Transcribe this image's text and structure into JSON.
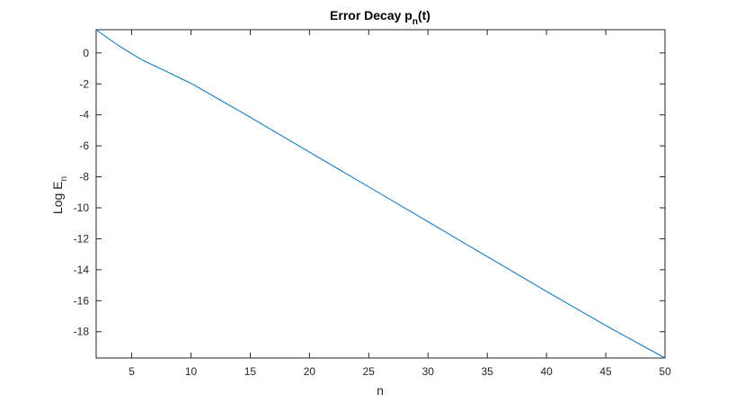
{
  "chart_data": {
    "type": "line",
    "title": "Error Decay p",
    "title_subscript": "n",
    "title_suffix": "(t)",
    "xlabel": "n",
    "ylabel": "Log E",
    "ylabel_subscript": "n",
    "xlim": [
      2,
      50
    ],
    "ylim": [
      -19.7,
      1.5
    ],
    "xticks": [
      5,
      10,
      15,
      20,
      25,
      30,
      35,
      40,
      45,
      50
    ],
    "yticks": [
      0,
      -2,
      -4,
      -6,
      -8,
      -10,
      -12,
      -14,
      -16,
      -18
    ],
    "grid": false,
    "line_color": "#0072BD",
    "series": [
      {
        "x": [
          2,
          3,
          4,
          5,
          6,
          7,
          8,
          9,
          10,
          15,
          20,
          25,
          30,
          35,
          40,
          45,
          50
        ],
        "y": [
          1.5,
          0.95,
          0.42,
          -0.05,
          -0.5,
          -0.86,
          -1.22,
          -1.6,
          -1.96,
          -4.15,
          -6.4,
          -8.65,
          -10.9,
          -13.15,
          -15.4,
          -17.6,
          -19.7
        ]
      }
    ]
  }
}
